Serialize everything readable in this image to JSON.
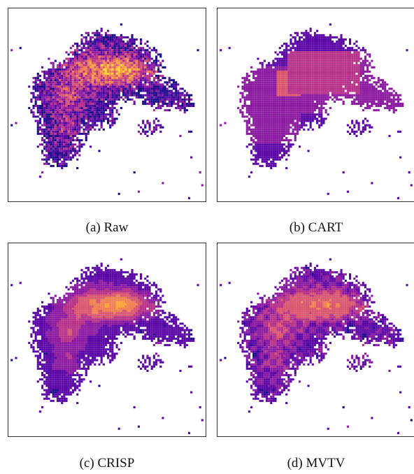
{
  "figure": {
    "panels": [
      {
        "caption": "(a) Raw",
        "method": "raw"
      },
      {
        "caption": "(b) CART",
        "method": "cart"
      },
      {
        "caption": "(c) CRISP",
        "method": "crisp"
      },
      {
        "caption": "(d) MVTV",
        "method": "mvtv"
      }
    ],
    "colormap": [
      "#1a0b8a",
      "#5b06a6",
      "#8b1aa0",
      "#b7338a",
      "#d9566f",
      "#ef8051",
      "#fba53b",
      "#f7d03c"
    ]
  }
}
